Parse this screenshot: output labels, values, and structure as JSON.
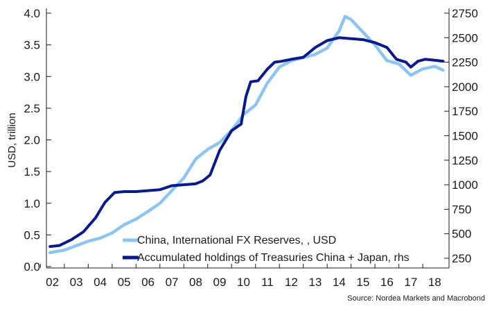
{
  "chart_data": {
    "type": "line",
    "title": "",
    "source": "Source: Nordea Markets and Macrobond",
    "xlabel": "",
    "x_ticks": [
      "02",
      "03",
      "04",
      "05",
      "06",
      "07",
      "08",
      "09",
      "10",
      "11",
      "12",
      "13",
      "14",
      "15",
      "16",
      "17",
      "18"
    ],
    "x_range": [
      2001.75,
      2018.6
    ],
    "y_left": {
      "label": "USD, trillion",
      "range": [
        0.0,
        4.0
      ],
      "ticks": [
        "0.0",
        "0.5",
        "1.0",
        "1.5",
        "2.0",
        "2.5",
        "3.0",
        "3.5",
        "4.0"
      ]
    },
    "y_right": {
      "label": "",
      "range": [
        225,
        2825
      ],
      "ticks": [
        "250",
        "500",
        "750",
        "1000",
        "1250",
        "1500",
        "1750",
        "2000",
        "2250",
        "2500",
        "2750"
      ]
    },
    "series": [
      {
        "name": "China, International FX Reserves, , USD",
        "axis": "left",
        "color": "#8ec5f0",
        "x": [
          2001.9,
          2002.5,
          2003.0,
          2003.5,
          2004.0,
          2004.5,
          2005.0,
          2005.5,
          2006.0,
          2006.5,
          2007.0,
          2007.5,
          2008.0,
          2008.5,
          2009.0,
          2009.5,
          2010.0,
          2010.5,
          2011.0,
          2011.5,
          2012.0,
          2012.5,
          2013.0,
          2013.5,
          2014.0,
          2014.25,
          2014.5,
          2015.0,
          2015.5,
          2016.0,
          2016.5,
          2017.0,
          2017.5,
          2018.0,
          2018.35
        ],
        "values": [
          0.22,
          0.26,
          0.33,
          0.4,
          0.45,
          0.53,
          0.66,
          0.75,
          0.87,
          1.0,
          1.2,
          1.4,
          1.7,
          1.85,
          1.96,
          2.15,
          2.4,
          2.55,
          2.9,
          3.15,
          3.25,
          3.3,
          3.35,
          3.45,
          3.72,
          3.95,
          3.9,
          3.7,
          3.5,
          3.25,
          3.2,
          3.02,
          3.12,
          3.16,
          3.1
        ]
      },
      {
        "name": "Accumulated holdings of Treasuries China + Japan, rhs",
        "axis": "right",
        "color": "#0a1a8c",
        "x": [
          2001.9,
          2002.3,
          2002.8,
          2003.3,
          2003.8,
          2004.2,
          2004.6,
          2005.0,
          2005.5,
          2006.0,
          2006.5,
          2007.0,
          2007.5,
          2008.0,
          2008.3,
          2008.6,
          2009.0,
          2009.5,
          2009.9,
          2010.1,
          2010.3,
          2010.6,
          2011.0,
          2011.3,
          2011.6,
          2012.0,
          2012.5,
          2013.0,
          2013.5,
          2014.0,
          2014.5,
          2015.0,
          2015.5,
          2016.0,
          2016.4,
          2016.8,
          2017.0,
          2017.3,
          2017.6,
          2018.0,
          2018.35
        ],
        "values": [
          370,
          380,
          440,
          520,
          660,
          820,
          920,
          930,
          930,
          940,
          950,
          990,
          1000,
          1010,
          1040,
          1100,
          1350,
          1550,
          1620,
          1900,
          2050,
          2060,
          2180,
          2250,
          2260,
          2280,
          2300,
          2400,
          2470,
          2500,
          2490,
          2480,
          2450,
          2400,
          2280,
          2250,
          2200,
          2260,
          2280,
          2270,
          2260
        ]
      }
    ],
    "legend_position": "bottom-center",
    "grid": false
  }
}
